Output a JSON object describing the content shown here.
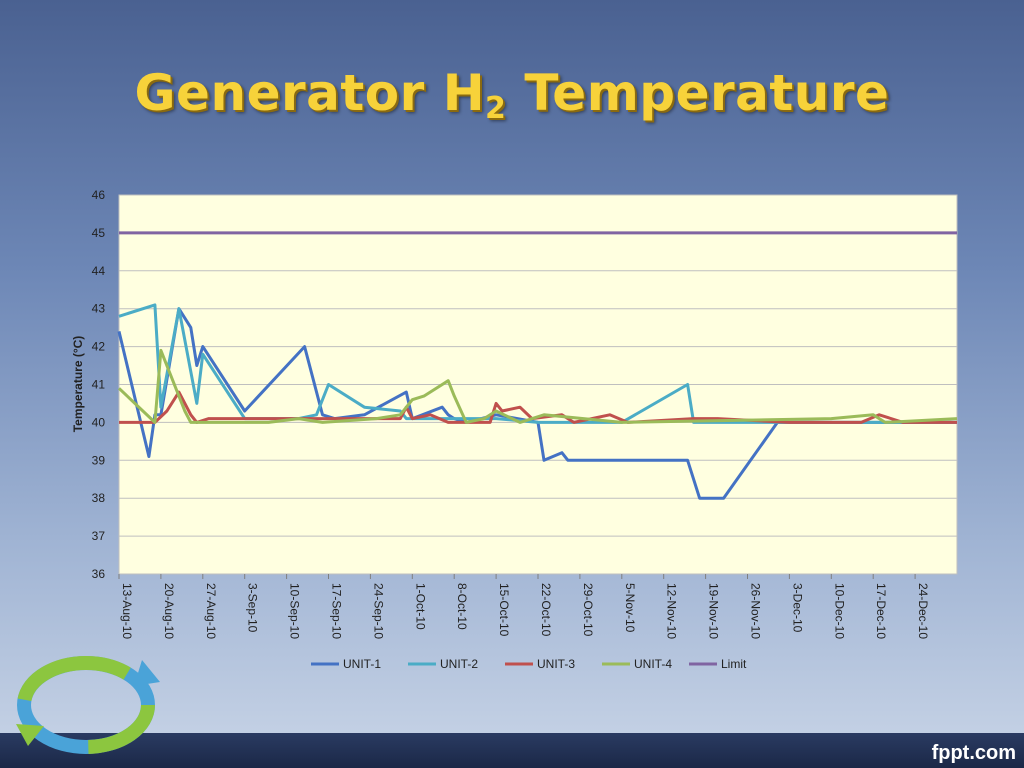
{
  "slide": {
    "title_main": "Generator H",
    "title_sub": "2",
    "title_end": " Temperature",
    "footer": "fppt.com"
  },
  "chart_data": {
    "type": "line",
    "ylabel": "Temperature (°C)",
    "xlabel": "",
    "ylim": [
      36,
      46
    ],
    "yticks": [
      36,
      37,
      38,
      39,
      40,
      41,
      42,
      43,
      44,
      45,
      46
    ],
    "x_range": [
      "2010-08-13",
      "2010-12-31"
    ],
    "xtick_labels": [
      "13-Aug-10",
      "20-Aug-10",
      "27-Aug-10",
      "3-Sep-10",
      "10-Sep-10",
      "17-Sep-10",
      "24-Sep-10",
      "1-Oct-10",
      "8-Oct-10",
      "15-Oct-10",
      "22-Oct-10",
      "29-Oct-10",
      "5-Nov-10",
      "12-Nov-10",
      "19-Nov-10",
      "26-Nov-10",
      "3-Dec-10",
      "10-Dec-10",
      "17-Dec-10",
      "24-Dec-10"
    ],
    "xtick_dates": [
      "2010-08-13",
      "2010-08-20",
      "2010-08-27",
      "2010-09-03",
      "2010-09-10",
      "2010-09-17",
      "2010-09-24",
      "2010-10-01",
      "2010-10-08",
      "2010-10-15",
      "2010-10-22",
      "2010-10-29",
      "2010-11-05",
      "2010-11-12",
      "2010-11-19",
      "2010-11-26",
      "2010-12-03",
      "2010-12-10",
      "2010-12-17",
      "2010-12-24"
    ],
    "grid": true,
    "legend_position": "bottom",
    "plot_background": "#ffffe0",
    "series": [
      {
        "name": "UNIT-1",
        "color": "#4472c4",
        "points": [
          [
            "2010-08-13",
            42.4
          ],
          [
            "2010-08-18",
            39.1
          ],
          [
            "2010-08-19",
            40.2
          ],
          [
            "2010-08-20",
            40.2
          ],
          [
            "2010-08-23",
            43.0
          ],
          [
            "2010-08-25",
            42.5
          ],
          [
            "2010-08-26",
            41.5
          ],
          [
            "2010-08-27",
            42.0
          ],
          [
            "2010-09-03",
            40.3
          ],
          [
            "2010-09-13",
            42.0
          ],
          [
            "2010-09-16",
            40.2
          ],
          [
            "2010-09-18",
            40.1
          ],
          [
            "2010-09-23",
            40.2
          ],
          [
            "2010-09-30",
            40.8
          ],
          [
            "2010-10-01",
            40.1
          ],
          [
            "2010-10-06",
            40.4
          ],
          [
            "2010-10-07",
            40.2
          ],
          [
            "2010-10-08",
            40.1
          ],
          [
            "2010-10-10",
            40.0
          ],
          [
            "2010-10-15",
            40.2
          ],
          [
            "2010-10-22",
            40.0
          ],
          [
            "2010-10-23",
            39.0
          ],
          [
            "2010-10-26",
            39.2
          ],
          [
            "2010-10-27",
            39.0
          ],
          [
            "2010-11-16",
            39.0
          ],
          [
            "2010-11-18",
            38.0
          ],
          [
            "2010-11-22",
            38.0
          ],
          [
            "2010-12-01",
            40.0
          ],
          [
            "2010-12-10",
            40.0
          ],
          [
            "2010-12-14",
            40.0
          ],
          [
            "2010-12-24",
            40.0
          ],
          [
            "2010-12-31",
            40.0
          ]
        ]
      },
      {
        "name": "UNIT-2",
        "color": "#4bacc6",
        "points": [
          [
            "2010-08-13",
            42.8
          ],
          [
            "2010-08-19",
            43.1
          ],
          [
            "2010-08-20",
            40.4
          ],
          [
            "2010-08-23",
            43.0
          ],
          [
            "2010-08-26",
            40.5
          ],
          [
            "2010-08-27",
            41.8
          ],
          [
            "2010-09-03",
            40.1
          ],
          [
            "2010-09-12",
            40.1
          ],
          [
            "2010-09-15",
            40.2
          ],
          [
            "2010-09-17",
            41.0
          ],
          [
            "2010-09-23",
            40.4
          ],
          [
            "2010-09-29",
            40.3
          ],
          [
            "2010-09-30",
            40.1
          ],
          [
            "2010-10-08",
            40.1
          ],
          [
            "2010-10-15",
            40.1
          ],
          [
            "2010-10-22",
            40.0
          ],
          [
            "2010-10-27",
            40.0
          ],
          [
            "2010-11-05",
            40.0
          ],
          [
            "2010-11-16",
            41.0
          ],
          [
            "2010-11-17",
            40.0
          ],
          [
            "2010-12-03",
            40.0
          ],
          [
            "2010-12-10",
            40.0
          ],
          [
            "2010-12-17",
            40.0
          ],
          [
            "2010-12-31",
            40.0
          ]
        ]
      },
      {
        "name": "UNIT-3",
        "color": "#c0504d",
        "points": [
          [
            "2010-08-13",
            40.0
          ],
          [
            "2010-08-19",
            40.0
          ],
          [
            "2010-08-21",
            40.3
          ],
          [
            "2010-08-23",
            40.8
          ],
          [
            "2010-08-25",
            40.2
          ],
          [
            "2010-08-26",
            40.0
          ],
          [
            "2010-08-28",
            40.1
          ],
          [
            "2010-09-29",
            40.1
          ],
          [
            "2010-09-30",
            40.4
          ],
          [
            "2010-10-01",
            40.1
          ],
          [
            "2010-10-04",
            40.2
          ],
          [
            "2010-10-07",
            40.0
          ],
          [
            "2010-10-14",
            40.0
          ],
          [
            "2010-10-15",
            40.5
          ],
          [
            "2010-10-16",
            40.3
          ],
          [
            "2010-10-19",
            40.4
          ],
          [
            "2010-10-21",
            40.1
          ],
          [
            "2010-10-26",
            40.2
          ],
          [
            "2010-10-28",
            40.0
          ],
          [
            "2010-11-03",
            40.2
          ],
          [
            "2010-11-06",
            40.0
          ],
          [
            "2010-11-17",
            40.1
          ],
          [
            "2010-11-21",
            40.1
          ],
          [
            "2010-12-03",
            40.0
          ],
          [
            "2010-12-15",
            40.0
          ],
          [
            "2010-12-18",
            40.2
          ],
          [
            "2010-12-22",
            40.0
          ],
          [
            "2010-12-31",
            40.0
          ]
        ]
      },
      {
        "name": "UNIT-4",
        "color": "#9bbb59",
        "points": [
          [
            "2010-08-13",
            40.9
          ],
          [
            "2010-08-19",
            40.0
          ],
          [
            "2010-08-20",
            41.9
          ],
          [
            "2010-08-24",
            40.3
          ],
          [
            "2010-08-25",
            40.0
          ],
          [
            "2010-09-07",
            40.0
          ],
          [
            "2010-09-12",
            40.1
          ],
          [
            "2010-09-16",
            40.0
          ],
          [
            "2010-09-25",
            40.1
          ],
          [
            "2010-09-29",
            40.2
          ],
          [
            "2010-10-01",
            40.6
          ],
          [
            "2010-10-03",
            40.7
          ],
          [
            "2010-10-07",
            41.1
          ],
          [
            "2010-10-08",
            40.7
          ],
          [
            "2010-10-10",
            40.0
          ],
          [
            "2010-10-13",
            40.1
          ],
          [
            "2010-10-15",
            40.3
          ],
          [
            "2010-10-19",
            40.0
          ],
          [
            "2010-10-23",
            40.2
          ],
          [
            "2010-11-05",
            40.0
          ],
          [
            "2010-12-10",
            40.1
          ],
          [
            "2010-12-17",
            40.2
          ],
          [
            "2010-12-19",
            40.0
          ],
          [
            "2010-12-31",
            40.1
          ]
        ]
      },
      {
        "name": "Limit",
        "color": "#8064a2",
        "points": [
          [
            "2010-08-13",
            45.0
          ],
          [
            "2010-12-31",
            45.0
          ]
        ]
      }
    ]
  }
}
